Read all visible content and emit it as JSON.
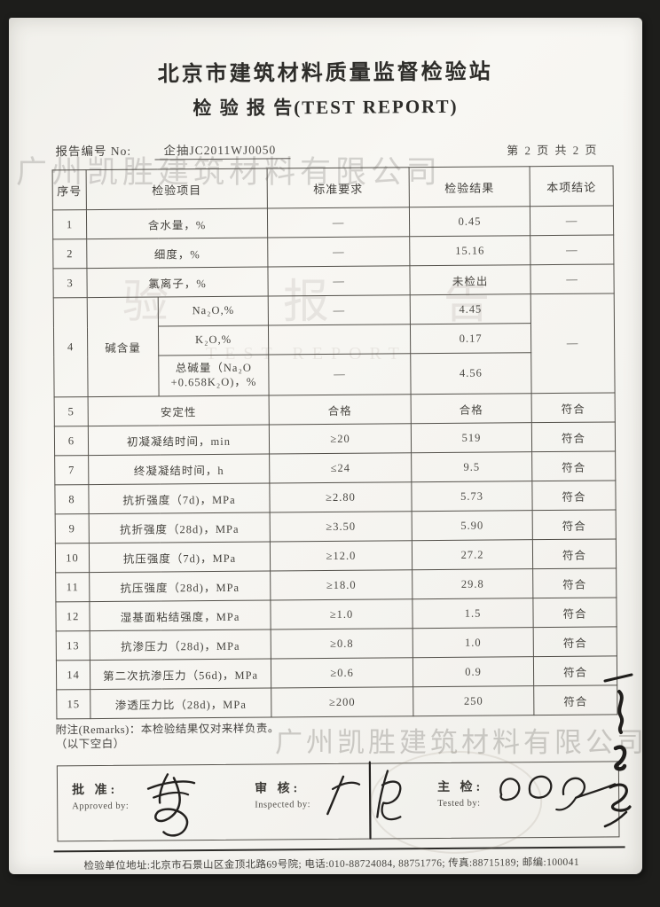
{
  "scan": {
    "company_watermark": "广州凯胜建筑材料有限公司",
    "stamp_text": "验 报 告",
    "stamp_subtext": "TEST REPORT"
  },
  "header": {
    "org": "北京市建筑材料质量监督检验站",
    "title": "检 验 报 告(TEST REPORT)",
    "report_no_label": "报告编号 No:",
    "report_no": "企抽JC2011WJ0050",
    "page_info": "第 2 页 共 2 页"
  },
  "table": {
    "headers": {
      "no": "序号",
      "item": "检验项目",
      "standard": "标准要求",
      "result": "检验结果",
      "conclusion": "本项结论"
    },
    "rows": [
      {
        "no": "1",
        "item": "含水量，%",
        "standard": "—",
        "result": "0.45",
        "conclusion": "—"
      },
      {
        "no": "2",
        "item": "细度，%",
        "standard": "—",
        "result": "15.16",
        "conclusion": "—"
      },
      {
        "no": "3",
        "item": "氯离子，%",
        "standard": "—",
        "result": "未检出",
        "conclusion": "—"
      },
      {
        "no": "4",
        "group": "碱含量",
        "conclusion": "—",
        "subs": [
          {
            "item": "Na₂O,%",
            "standard": "—",
            "result": "4.45"
          },
          {
            "item": "K₂O,%",
            "standard": "",
            "result": "0.17"
          },
          {
            "item": "总碱量（Na₂O\n+0.658K₂O)，%",
            "standard": "—",
            "result": "4.56"
          }
        ]
      },
      {
        "no": "5",
        "item": "安定性",
        "standard": "合格",
        "result": "合格",
        "conclusion": "符合"
      },
      {
        "no": "6",
        "item": "初凝凝结时间，min",
        "standard": "≥20",
        "result": "519",
        "conclusion": "符合"
      },
      {
        "no": "7",
        "item": "终凝凝结时间，h",
        "standard": "≤24",
        "result": "9.5",
        "conclusion": "符合"
      },
      {
        "no": "8",
        "item": "抗折强度（7d)，MPa",
        "standard": "≥2.80",
        "result": "5.73",
        "conclusion": "符合"
      },
      {
        "no": "9",
        "item": "抗折强度（28d)，MPa",
        "standard": "≥3.50",
        "result": "5.90",
        "conclusion": "符合"
      },
      {
        "no": "10",
        "item": "抗压强度（7d)，MPa",
        "standard": "≥12.0",
        "result": "27.2",
        "conclusion": "符合"
      },
      {
        "no": "11",
        "item": "抗压强度（28d)，MPa",
        "standard": "≥18.0",
        "result": "29.8",
        "conclusion": "符合"
      },
      {
        "no": "12",
        "item": "湿基面粘结强度，MPa",
        "standard": "≥1.0",
        "result": "1.5",
        "conclusion": "符合"
      },
      {
        "no": "13",
        "item": "抗渗压力（28d)，MPa",
        "standard": "≥0.8",
        "result": "1.0",
        "conclusion": "符合"
      },
      {
        "no": "14",
        "item": "第二次抗渗压力（56d)，MPa",
        "standard": "≥0.6",
        "result": "0.9",
        "conclusion": "符合"
      },
      {
        "no": "15",
        "item": "渗透压力比（28d)，MPa",
        "standard": "≥200",
        "result": "250",
        "conclusion": "符合"
      }
    ]
  },
  "remarks": {
    "line1": "附注(Remarks)：本检验结果仅对来样负责。",
    "line2": "（以下空白）"
  },
  "signatures": {
    "approve_label": "批  准:",
    "approve_en": "Approved by:",
    "review_label": "审  核:",
    "review_en": "Inspected by:",
    "test_label": "主  检:",
    "test_en": "Tested by:"
  },
  "footer": {
    "address_line": "检验单位地址:北京市石景山区金顶北路69号院; 电话:010-88724084, 88751776; 传真:88715189; 邮编:100041"
  }
}
